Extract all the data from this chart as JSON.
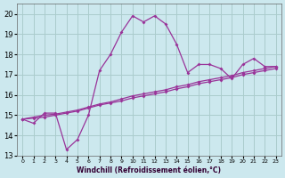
{
  "xlabel": "Windchill (Refroidissement éolien,°C)",
  "bg_color": "#cce8ee",
  "grid_color": "#aacccc",
  "line_color": "#993399",
  "xlim": [
    -0.5,
    23.5
  ],
  "ylim": [
    13,
    20.5
  ],
  "yticks": [
    13,
    14,
    15,
    16,
    17,
    18,
    19,
    20
  ],
  "xticks": [
    0,
    1,
    2,
    3,
    4,
    5,
    6,
    7,
    8,
    9,
    10,
    11,
    12,
    13,
    14,
    15,
    16,
    17,
    18,
    19,
    20,
    21,
    22,
    23
  ],
  "line1_x": [
    0,
    1,
    2,
    3,
    4,
    5,
    6,
    7,
    8,
    9,
    10,
    11,
    12,
    13,
    14,
    15,
    16,
    17,
    18,
    19,
    20,
    21,
    22,
    23
  ],
  "line1_y": [
    14.8,
    14.6,
    15.1,
    15.1,
    13.3,
    13.8,
    15.0,
    17.2,
    18.0,
    19.1,
    19.9,
    19.6,
    19.9,
    19.5,
    18.5,
    17.1,
    17.5,
    17.5,
    17.3,
    16.8,
    17.5,
    17.8,
    17.4,
    17.4
  ],
  "line2_x": [
    0,
    1,
    2,
    3,
    4,
    5,
    6,
    7,
    8,
    9,
    10,
    11,
    12,
    13,
    14,
    15,
    16,
    17,
    18,
    19,
    20,
    21,
    22,
    23
  ],
  "line2_y": [
    14.8,
    14.85,
    14.9,
    15.0,
    15.1,
    15.2,
    15.35,
    15.5,
    15.6,
    15.7,
    15.85,
    15.95,
    16.05,
    16.15,
    16.3,
    16.4,
    16.55,
    16.65,
    16.75,
    16.85,
    17.0,
    17.1,
    17.2,
    17.3
  ],
  "line3_x": [
    0,
    1,
    2,
    3,
    4,
    5,
    6,
    7,
    8,
    9,
    10,
    11,
    12,
    13,
    14,
    15,
    16,
    17,
    18,
    19,
    20,
    21,
    22,
    23
  ],
  "line3_y": [
    14.8,
    14.9,
    15.0,
    15.05,
    15.15,
    15.25,
    15.4,
    15.55,
    15.65,
    15.8,
    15.95,
    16.05,
    16.15,
    16.25,
    16.4,
    16.5,
    16.65,
    16.75,
    16.85,
    16.95,
    17.1,
    17.2,
    17.3,
    17.4
  ]
}
